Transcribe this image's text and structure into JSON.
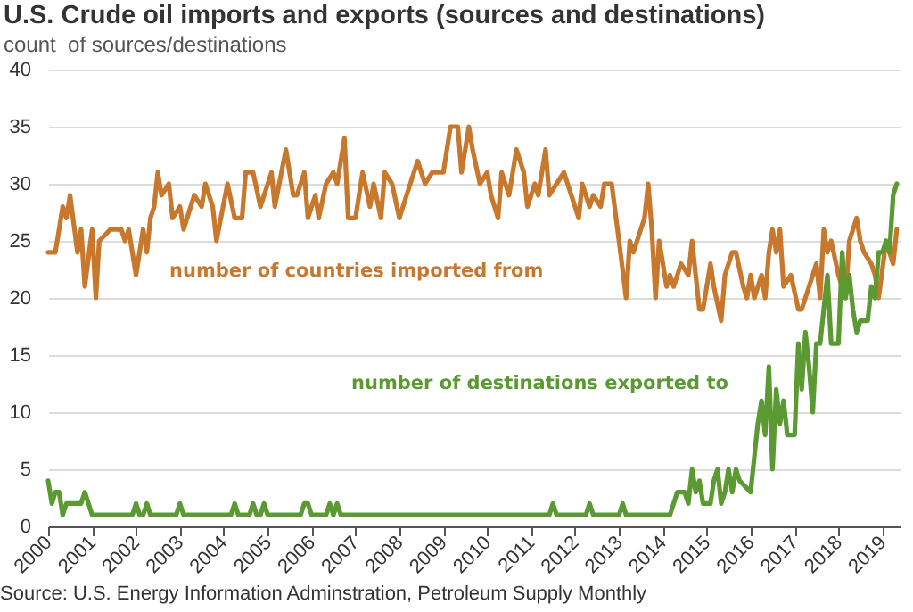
{
  "chart_data": {
    "type": "line",
    "title": "U.S. Crude oil imports and exports (sources and destinations)",
    "subtitle": "count  of sources/destinations",
    "annotations": [
      "Source: U.S. Energy Information Adminstration, Petroleum Supply Monthly"
    ],
    "xlim": [
      "2000-01",
      "2019-06"
    ],
    "xticks": [
      "2000",
      "2001",
      "2002",
      "2003",
      "2004",
      "2005",
      "2006",
      "2007",
      "2008",
      "2009",
      "2010",
      "2011",
      "2012",
      "2013",
      "2014",
      "2015",
      "2016",
      "2017",
      "2018",
      "2019"
    ],
    "ylim": [
      0,
      40
    ],
    "yticks": [
      0,
      5,
      10,
      15,
      20,
      25,
      30,
      35,
      40
    ],
    "grid": "y",
    "legend": false,
    "marker": "none",
    "line_style": "solid",
    "series": [
      {
        "name": "number of countries imported from",
        "color": "#c8782c",
        "x": [
          "2000-01",
          "2000-03",
          "2000-04",
          "2000-05",
          "2000-06",
          "2000-07",
          "2000-09",
          "2000-10",
          "2000-11",
          "2001-01",
          "2001-02",
          "2001-03",
          "2001-06",
          "2001-09",
          "2001-10",
          "2001-11",
          "2002-01",
          "2002-03",
          "2002-04",
          "2002-05",
          "2002-06",
          "2002-07",
          "2002-08",
          "2002-10",
          "2002-11",
          "2003-01",
          "2003-02",
          "2003-04",
          "2003-05",
          "2003-07",
          "2003-08",
          "2003-10",
          "2003-11",
          "2004-02",
          "2004-04",
          "2004-06",
          "2004-07",
          "2004-09",
          "2004-11",
          "2005-02",
          "2005-03",
          "2005-06",
          "2005-08",
          "2005-09",
          "2005-11",
          "2005-12",
          "2006-02",
          "2006-03",
          "2006-05",
          "2006-07",
          "2006-08",
          "2006-10",
          "2006-11",
          "2007-01",
          "2007-03",
          "2007-05",
          "2007-06",
          "2007-08",
          "2007-09",
          "2007-11",
          "2008-01",
          "2008-03",
          "2008-05",
          "2008-06",
          "2008-08",
          "2008-10",
          "2009-01",
          "2009-03",
          "2009-05",
          "2009-06",
          "2009-08",
          "2009-09",
          "2009-11",
          "2010-01",
          "2010-02",
          "2010-04",
          "2010-05",
          "2010-07",
          "2010-09",
          "2010-11",
          "2010-12",
          "2011-02",
          "2011-03",
          "2011-05",
          "2011-06",
          "2011-08",
          "2011-10",
          "2011-12",
          "2012-02",
          "2012-03",
          "2012-05",
          "2012-06",
          "2012-08",
          "2012-09",
          "2012-11",
          "2013-01",
          "2013-03",
          "2013-04",
          "2013-05",
          "2013-07",
          "2013-08",
          "2013-09",
          "2013-10",
          "2013-11",
          "2013-12",
          "2014-02",
          "2014-03",
          "2014-04",
          "2014-06",
          "2014-08",
          "2014-09",
          "2014-10",
          "2014-11",
          "2014-12",
          "2015-02",
          "2015-03",
          "2015-05",
          "2015-06",
          "2015-08",
          "2015-09",
          "2015-11",
          "2015-12",
          "2016-01",
          "2016-02",
          "2016-04",
          "2016-05",
          "2016-06",
          "2016-07",
          "2016-08",
          "2016-09",
          "2016-10",
          "2016-12",
          "2017-02",
          "2017-03",
          "2017-06",
          "2017-07",
          "2017-08",
          "2017-09",
          "2017-10",
          "2017-11",
          "2018-01",
          "2018-03",
          "2018-04",
          "2018-06",
          "2018-07",
          "2018-08",
          "2018-10",
          "2018-11",
          "2018-12",
          "2019-02",
          "2019-03",
          "2019-04",
          "2019-05"
        ],
        "values": [
          24,
          24,
          26,
          28,
          27,
          29,
          24,
          26,
          21,
          26,
          20,
          25,
          26,
          26,
          25,
          26,
          22,
          26,
          24,
          27,
          28,
          31,
          29,
          30,
          27,
          28,
          26,
          28,
          29,
          28,
          30,
          28,
          25,
          30,
          27,
          27,
          31,
          31,
          28,
          31,
          28,
          33,
          29,
          29,
          31,
          27,
          29,
          27,
          30,
          31,
          30,
          34,
          27,
          27,
          31,
          28,
          30,
          27,
          31,
          30,
          27,
          29,
          31,
          32,
          30,
          31,
          31,
          35,
          35,
          31,
          35,
          33,
          30,
          31,
          29,
          27,
          31,
          29,
          33,
          31,
          28,
          30,
          29,
          33,
          29,
          30,
          31,
          29,
          27,
          30,
          28,
          29,
          28,
          30,
          30,
          25,
          20,
          25,
          24,
          26,
          27,
          30,
          26,
          20,
          25,
          21,
          22,
          21,
          23,
          22,
          25,
          22,
          19,
          19,
          23,
          21,
          18,
          22,
          24,
          24,
          21,
          20,
          22,
          20,
          22,
          20,
          24,
          26,
          24,
          26,
          21,
          22,
          19,
          19,
          22,
          23,
          20,
          26,
          24,
          25,
          22,
          20,
          25,
          27,
          25,
          24,
          23,
          22,
          20,
          25,
          24,
          23,
          26
        ]
      },
      {
        "name": "number of destinations exported to",
        "color": "#5b9a32",
        "x": [
          "2000-01",
          "2000-02",
          "2000-03",
          "2000-04",
          "2000-05",
          "2000-06",
          "2000-10",
          "2000-11",
          "2001-01",
          "2001-12",
          "2002-01",
          "2002-02",
          "2002-03",
          "2002-04",
          "2002-05",
          "2002-12",
          "2003-01",
          "2003-02",
          "2004-03",
          "2004-04",
          "2004-05",
          "2004-08",
          "2004-09",
          "2004-10",
          "2004-11",
          "2004-12",
          "2005-01",
          "2005-10",
          "2005-11",
          "2005-12",
          "2006-01",
          "2006-05",
          "2006-06",
          "2006-07",
          "2006-08",
          "2006-09",
          "2011-06",
          "2011-07",
          "2011-08",
          "2012-04",
          "2012-05",
          "2012-06",
          "2013-01",
          "2013-02",
          "2013-03",
          "2014-03",
          "2014-05",
          "2014-07",
          "2014-08",
          "2014-09",
          "2014-10",
          "2014-11",
          "2014-12",
          "2015-02",
          "2015-03",
          "2015-04",
          "2015-05",
          "2015-06",
          "2015-07",
          "2015-08",
          "2015-09",
          "2015-10",
          "2016-01",
          "2016-03",
          "2016-04",
          "2016-05",
          "2016-06",
          "2016-07",
          "2016-08",
          "2016-09",
          "2016-10",
          "2016-11",
          "2017-01",
          "2017-02",
          "2017-03",
          "2017-04",
          "2017-05",
          "2017-06",
          "2017-07",
          "2017-08",
          "2017-10",
          "2017-11",
          "2018-01",
          "2018-02",
          "2018-03",
          "2018-04",
          "2018-05",
          "2018-06",
          "2018-07",
          "2018-09",
          "2018-10",
          "2018-11",
          "2018-12",
          "2019-01",
          "2019-02",
          "2019-03",
          "2019-04",
          "2019-05"
        ],
        "values": [
          4,
          2,
          3,
          3,
          1,
          2,
          2,
          3,
          1,
          1,
          2,
          1,
          1,
          2,
          1,
          1,
          2,
          1,
          1,
          2,
          1,
          1,
          2,
          1,
          1,
          2,
          1,
          1,
          2,
          2,
          1,
          1,
          2,
          1,
          2,
          1,
          1,
          2,
          1,
          1,
          2,
          1,
          1,
          2,
          1,
          1,
          3,
          3,
          2,
          5,
          3,
          4,
          2,
          2,
          4,
          5,
          2,
          3,
          5,
          3,
          5,
          4,
          3,
          9,
          11,
          8,
          14,
          5,
          12,
          9,
          11,
          8,
          8,
          16,
          12,
          17,
          14,
          10,
          16,
          16,
          22,
          16,
          16,
          24,
          20,
          22,
          19,
          17,
          18,
          18,
          21,
          20,
          24,
          24,
          25,
          24,
          29,
          30
        ]
      }
    ]
  }
}
